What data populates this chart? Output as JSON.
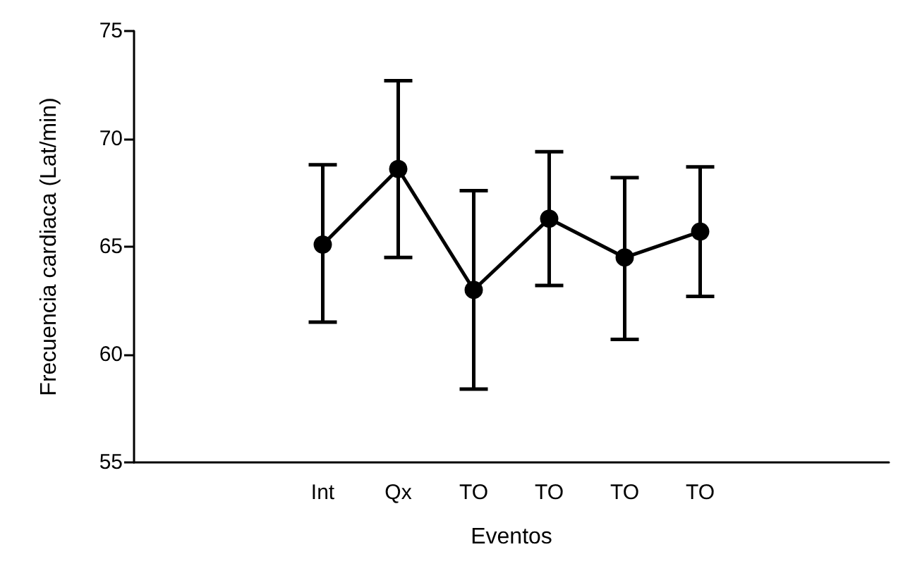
{
  "chart_data": {
    "type": "line",
    "xlabel": "Eventos",
    "ylabel": "Frecuencia cardiaca (Lat/min)",
    "categories": [
      null,
      null,
      "Int",
      "Qx",
      "TO",
      "TO",
      "TO",
      "TO",
      null,
      null
    ],
    "series": [
      {
        "color": "#000000",
        "values": [
          null,
          null,
          65.1,
          68.6,
          63.0,
          66.3,
          64.5,
          65.7,
          null,
          null
        ],
        "errors": [
          null,
          null,
          [
            61.5,
            68.8
          ],
          [
            64.5,
            72.7
          ],
          [
            58.4,
            67.6
          ],
          [
            63.2,
            69.4
          ],
          [
            60.7,
            68.2
          ],
          [
            62.7,
            68.7
          ],
          null,
          null
        ]
      }
    ],
    "ylim": [
      55,
      75
    ],
    "yticks": [
      55,
      60,
      65,
      70,
      75
    ],
    "grid": false,
    "marker": "circle",
    "line_style": "solid"
  }
}
